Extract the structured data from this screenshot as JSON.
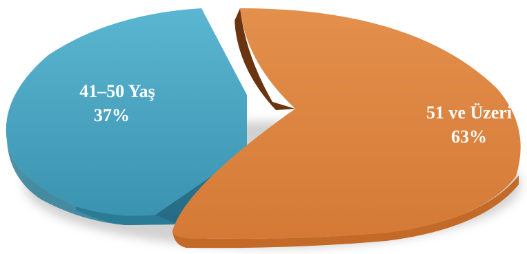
{
  "chart_data": {
    "type": "pie",
    "style": "3d-exploded",
    "legend": "none",
    "slices": [
      {
        "label": "41–50 Yaş",
        "value": 37,
        "value_label": "37%",
        "color": "#4AA5C2",
        "side_color": "#2E7892"
      },
      {
        "label": "51 ve Üzeri",
        "value": 63,
        "value_label": "63%",
        "color": "#DE8440",
        "side_color": "#7A4016"
      }
    ]
  }
}
